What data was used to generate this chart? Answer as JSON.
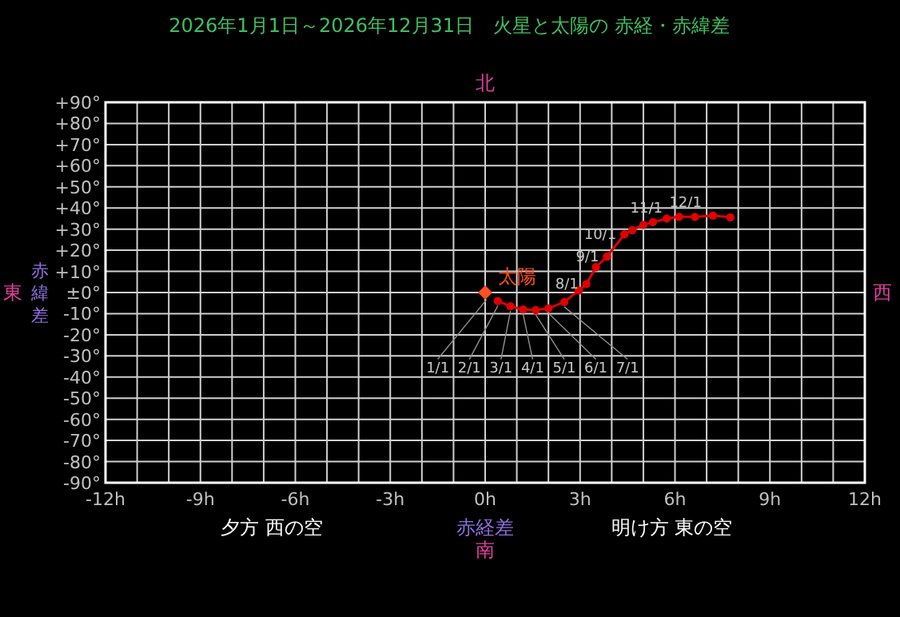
{
  "chart_data": {
    "type": "line",
    "title": "2026年1月1日～2026年12月31日　火星と太陽の 赤経・赤緯差",
    "xlabel": "赤経差",
    "ylabel": "赤緯差",
    "xlim": [
      -12,
      12
    ],
    "ylim": [
      -90,
      90
    ],
    "xticks": [
      {
        "value": -12,
        "label": "-12h"
      },
      {
        "value": -11,
        "label": null
      },
      {
        "value": -10,
        "label": null
      },
      {
        "value": -9,
        "label": "-9h"
      },
      {
        "value": -8,
        "label": null
      },
      {
        "value": -7,
        "label": null
      },
      {
        "value": -6,
        "label": "-6h"
      },
      {
        "value": -5,
        "label": null
      },
      {
        "value": -4,
        "label": null
      },
      {
        "value": -3,
        "label": "-3h"
      },
      {
        "value": -2,
        "label": null
      },
      {
        "value": -1,
        "label": null
      },
      {
        "value": 0,
        "label": "0h"
      },
      {
        "value": 1,
        "label": null
      },
      {
        "value": 2,
        "label": null
      },
      {
        "value": 3,
        "label": "3h"
      },
      {
        "value": 4,
        "label": null
      },
      {
        "value": 5,
        "label": null
      },
      {
        "value": 6,
        "label": "6h"
      },
      {
        "value": 7,
        "label": null
      },
      {
        "value": 8,
        "label": null
      },
      {
        "value": 9,
        "label": "9h"
      },
      {
        "value": 10,
        "label": null
      },
      {
        "value": 11,
        "label": null
      },
      {
        "value": 12,
        "label": "12h"
      }
    ],
    "yticks": [
      {
        "value": -90,
        "label": "-90°"
      },
      {
        "value": -80,
        "label": "-80°"
      },
      {
        "value": -70,
        "label": "-70°"
      },
      {
        "value": -60,
        "label": "-60°"
      },
      {
        "value": -50,
        "label": "-50°"
      },
      {
        "value": -40,
        "label": "-40°"
      },
      {
        "value": -30,
        "label": "-30°"
      },
      {
        "value": -20,
        "label": "-20°"
      },
      {
        "value": -10,
        "label": "-10°"
      },
      {
        "value": 0,
        "label": "±0°"
      },
      {
        "value": 10,
        "label": "+10°"
      },
      {
        "value": 20,
        "label": "+20°"
      },
      {
        "value": 30,
        "label": "+30°"
      },
      {
        "value": 40,
        "label": "+40°"
      },
      {
        "value": 50,
        "label": "+50°"
      },
      {
        "value": 60,
        "label": "+60°"
      },
      {
        "value": 70,
        "label": "+70°"
      },
      {
        "value": 80,
        "label": "+80°"
      },
      {
        "value": 90,
        "label": "+90°"
      }
    ],
    "grid": true,
    "series": [
      {
        "color": "#e00000",
        "marker": "circle",
        "x": [
          0.4,
          0.8,
          1.2,
          1.6,
          2.0,
          2.5,
          2.96,
          3.2,
          3.5,
          3.85,
          4.4,
          4.65,
          5.0,
          5.3,
          5.74,
          6.13,
          6.63,
          7.2,
          7.75
        ],
        "values": [
          -4,
          -6.5,
          -8,
          -8.3,
          -7.5,
          -4.5,
          1,
          4,
          12,
          17,
          27.5,
          29.5,
          32,
          33.3,
          35,
          35.8,
          35.8,
          36.4,
          35.6
        ]
      },
      {
        "name": "太陽",
        "type": "scatter",
        "color": "#ff5020",
        "marker": "diamond",
        "x": [
          0
        ],
        "values": [
          0
        ]
      }
    ],
    "annotations": [
      "東",
      "西",
      "北",
      "南",
      "夕方 西の空",
      "明け方 東の空",
      {
        "text": "1/1",
        "x": 0.05,
        "y": -1
      },
      {
        "text": "2/1",
        "x": 0.4,
        "y": -4
      },
      {
        "text": "3/1",
        "x": 0.8,
        "y": -6.5
      },
      {
        "text": "4/1",
        "x": 1.2,
        "y": -8
      },
      {
        "text": "5/1",
        "x": 1.6,
        "y": -8.3
      },
      {
        "text": "6/1",
        "x": 2.0,
        "y": -7.5
      },
      {
        "text": "7/1",
        "x": 2.5,
        "y": -4.5
      },
      {
        "text": "8/1",
        "x": 3.2,
        "y": 4
      },
      {
        "text": "9/1",
        "x": 3.85,
        "y": 17
      },
      {
        "text": "10/1",
        "x": 4.4,
        "y": 27.5
      },
      {
        "text": "11/1",
        "x": 5.3,
        "y": 33.3
      },
      {
        "text": "12/1",
        "x": 6.13,
        "y": 35.8
      }
    ]
  }
}
